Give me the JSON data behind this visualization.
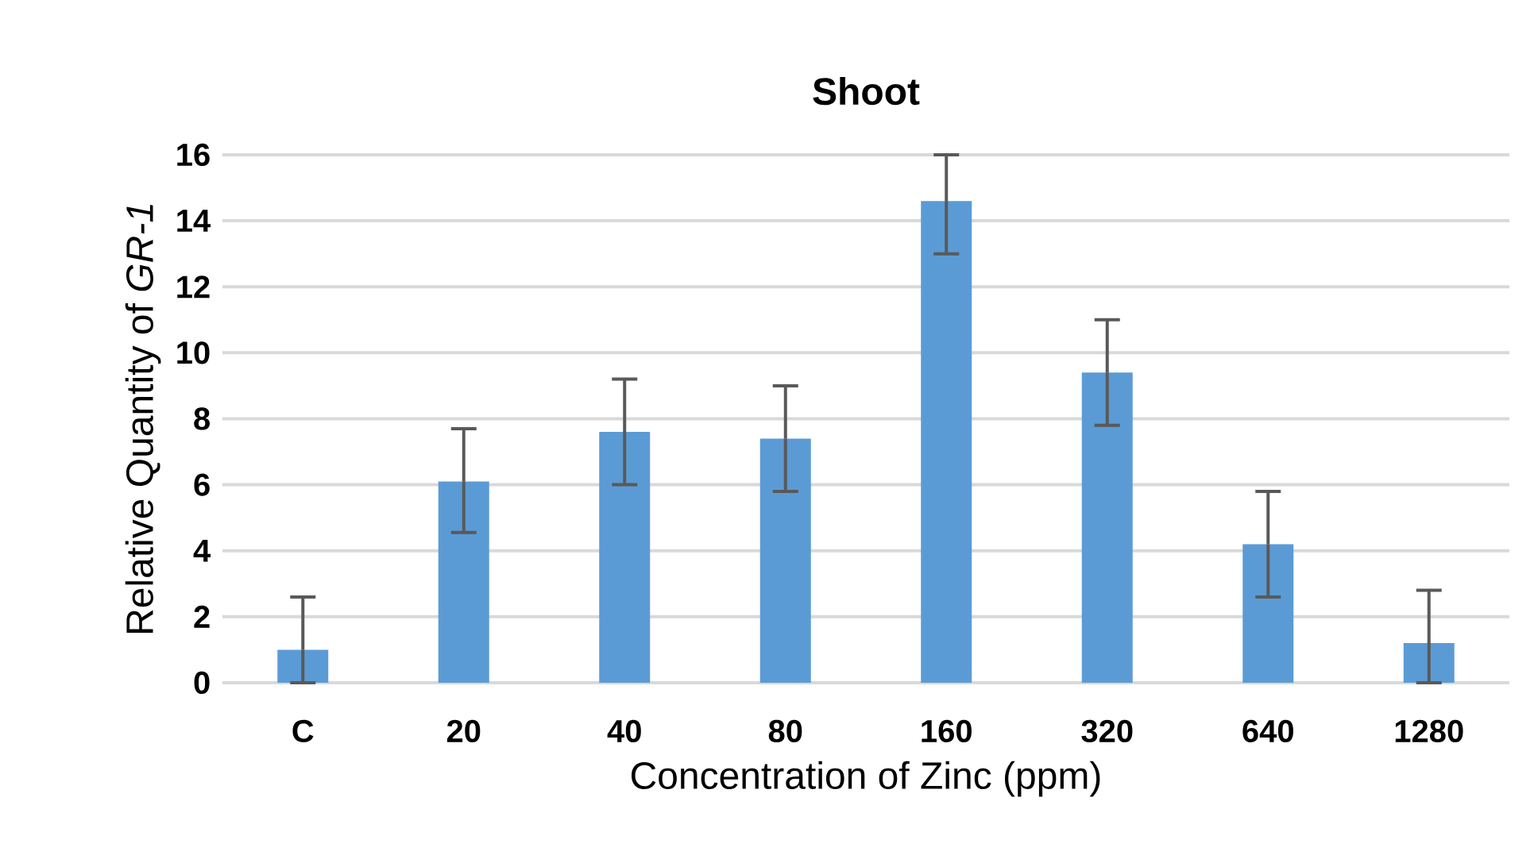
{
  "chart_data": {
    "type": "bar",
    "title": "Shoot",
    "xlabel": "Concentration of Zinc (ppm)",
    "ylabel": "Relative Quantity of *GR-1*",
    "categories": [
      "C",
      "20",
      "40",
      "80",
      "160",
      "320",
      "640",
      "1280"
    ],
    "values": [
      1.0,
      6.1,
      7.6,
      7.4,
      14.6,
      9.4,
      4.2,
      1.2
    ],
    "errors": [
      [
        0,
        2.6
      ],
      [
        4.55,
        7.7
      ],
      [
        6.0,
        9.2
      ],
      [
        5.8,
        9.0
      ],
      [
        13.0,
        16.0
      ],
      [
        7.8,
        11.0
      ],
      [
        2.6,
        5.8
      ],
      [
        0,
        2.8
      ]
    ],
    "color": "#5b9bd5",
    "ylim": [
      0,
      16
    ],
    "yticks": [
      0,
      2,
      4,
      6,
      8,
      10,
      12,
      14,
      16
    ],
    "grid": "y"
  }
}
